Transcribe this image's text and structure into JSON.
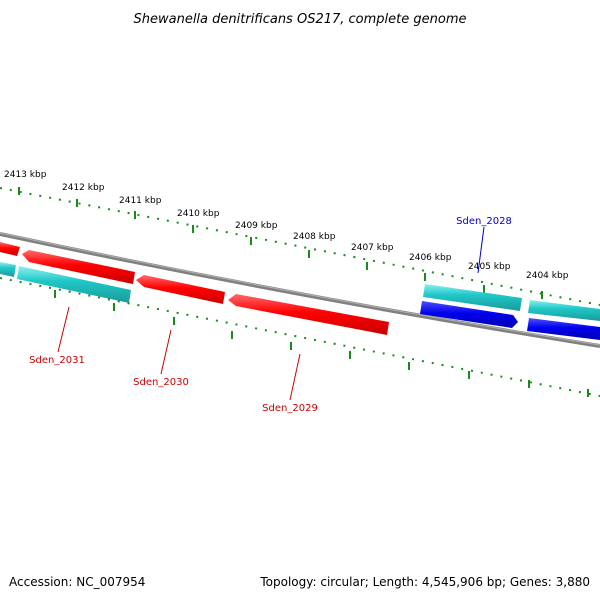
{
  "title": "Shewanella denitrificans OS217, complete genome",
  "footer": {
    "accession": "Accession: NC_007954",
    "summary": "Topology: circular; Length: 4,545,906 bp; Genes: 3,880"
  },
  "scale_labels": [
    "2413 kbp",
    "2412 kbp",
    "2411 kbp",
    "2410 kbp",
    "2409 kbp",
    "2408 kbp",
    "2407 kbp",
    "2406 kbp",
    "2405 kbp",
    "2404 kbp"
  ],
  "gene_labels": [
    "Sden_2031",
    "Sden_2030",
    "Sden_2029",
    "Sden_2028"
  ],
  "colors": {
    "red_gene": "#ff0000",
    "blue_gene": "#0000ee",
    "cyan_gene": "#20c8c8",
    "red_label": "#cc0000",
    "blue_label": "#0000cc",
    "backbone": "#808080",
    "tick": "#1a8a1a"
  }
}
